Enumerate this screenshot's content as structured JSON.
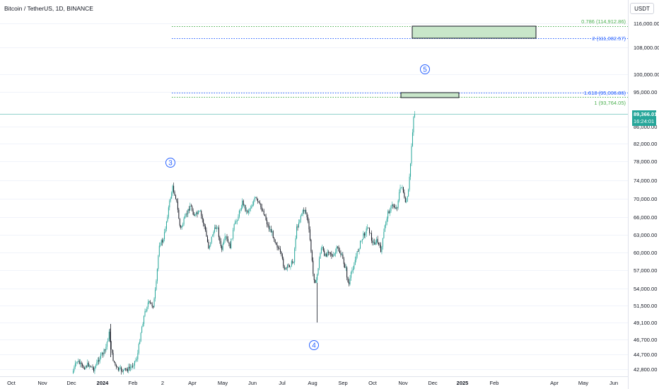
{
  "header": {
    "symbol": "Bitcoin / TetherUS, 1D, BINANCE",
    "currency": "USDT"
  },
  "price_axis": {
    "ticks": [
      "116,000.00",
      "108,000.00",
      "100,000.00",
      "95,000.00",
      "86,000.00",
      "82,000.00",
      "78,000.00",
      "74,000.00",
      "70,000.00",
      "66,000.00",
      "63,000.00",
      "60,000.00",
      "57,000.00",
      "54,000.00",
      "51,500.00",
      "49,100.00",
      "46,700.00",
      "44,700.00",
      "42,800.00"
    ]
  },
  "time_axis": {
    "ticks": [
      "Oct",
      "Nov",
      "Dec",
      "2024",
      "Feb",
      "2",
      "Apr",
      "May",
      "Jun",
      "Jul",
      "Aug",
      "Sep",
      "Oct",
      "Nov",
      "Dec",
      "2025",
      "Feb",
      "Apr",
      "May",
      "Jun"
    ]
  },
  "current_price": {
    "price": "89,366.01",
    "countdown": "16:24:01",
    "color": "#26a69a"
  },
  "fib_levels": [
    {
      "label": "0.786 (114,912.86)",
      "color": "#4caf50"
    },
    {
      "label": "2 (111,082.57)",
      "color": "#2962ff"
    },
    {
      "label": "1.618 (95,006.86)",
      "color": "#2962ff"
    },
    {
      "label": "1 (93,764.05)",
      "color": "#4caf50"
    }
  ],
  "waves": [
    "3",
    "4",
    "5"
  ],
  "colors": {
    "up": "#26a69a",
    "down": "#131722",
    "zone_fill": "#c8e6c9"
  }
}
